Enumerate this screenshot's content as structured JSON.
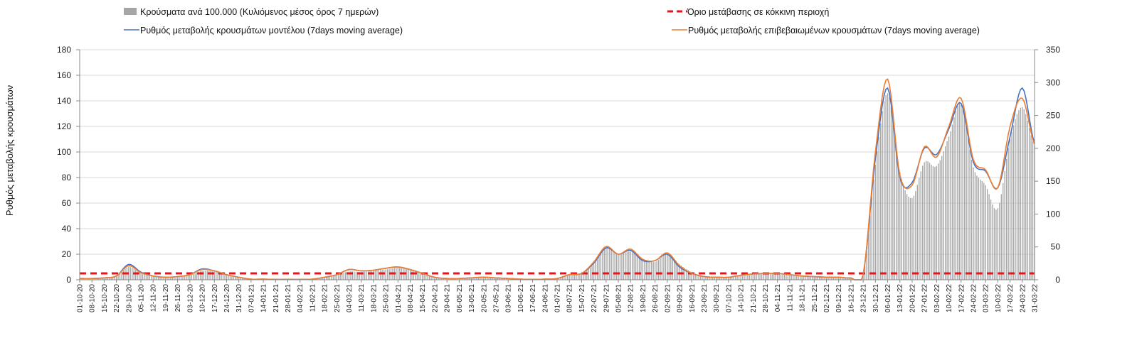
{
  "chart_data": {
    "type": "bar+line",
    "ylabel": "Ρυθμός μεταβολής κρουσμάτων",
    "y_left": {
      "min": 0,
      "max": 180,
      "step": 20
    },
    "y_right": {
      "min": 0,
      "max": 350,
      "step": 50
    },
    "legend": {
      "bars": "Κρούσματα ανά 100.000 (Κυλιόμενος μέσος όρος 7 ημερών)",
      "threshold": "Όριο μετάβασης σε κόκκινη περιοχή",
      "model": "Ρυθμός μεταβολής κρουσμάτων μοντέλου (7days moving average)",
      "confirmed": "Ρυθμός μεταβολής επιβεβαιωμένων κρουσμάτων (7days moving average)"
    },
    "colors": {
      "bars": "#a6a6a6",
      "threshold": "#e8141c",
      "model": "#4472c4",
      "confirmed": "#ed7d31"
    },
    "x_labels": [
      "01-10-20",
      "08-10-20",
      "15-10-20",
      "22-10-20",
      "29-10-20",
      "05-11-20",
      "12-11-20",
      "19-11-20",
      "26-11-20",
      "03-12-20",
      "10-12-20",
      "17-12-20",
      "24-12-20",
      "31-12-20",
      "07-01-21",
      "14-01-21",
      "21-01-21",
      "28-01-21",
      "04-02-21",
      "11-02-21",
      "18-02-21",
      "25-02-21",
      "04-03-21",
      "11-03-21",
      "18-03-21",
      "25-03-21",
      "01-04-21",
      "08-04-21",
      "15-04-21",
      "22-04-21",
      "29-04-21",
      "06-05-21",
      "13-05-21",
      "20-05-21",
      "27-05-21",
      "03-06-21",
      "10-06-21",
      "17-06-21",
      "24-06-21",
      "01-07-21",
      "08-07-21",
      "15-07-21",
      "22-07-21",
      "29-07-21",
      "05-08-21",
      "12-08-21",
      "19-08-21",
      "26-08-21",
      "02-09-21",
      "09-09-21",
      "16-09-21",
      "23-09-21",
      "30-09-21",
      "07-10-21",
      "14-10-21",
      "21-10-21",
      "28-10-21",
      "04-11-21",
      "11-11-21",
      "18-11-21",
      "25-11-21",
      "02-12-21",
      "09-12-21",
      "16-12-21",
      "23-12-21",
      "30-12-21",
      "06-01-22",
      "13-01-22",
      "20-01-22",
      "27-01-22",
      "03-02-22",
      "10-02-22",
      "17-02-22",
      "24-02-22",
      "03-03-22",
      "10-03-22",
      "17-03-22",
      "24-03-22",
      "31-03-22"
    ],
    "threshold_value": 5,
    "bars_weekly": [
      1,
      1,
      1.5,
      3,
      10,
      5,
      2.5,
      1.5,
      2,
      3.5,
      7,
      6.5,
      3.5,
      1.5,
      0.5,
      0.5,
      0.3,
      0.3,
      0.3,
      0.5,
      2,
      4,
      6.5,
      6,
      7,
      8,
      9.5,
      8,
      5,
      2,
      1,
      1,
      1.5,
      1.5,
      1.5,
      1,
      0.5,
      0.3,
      0.5,
      1,
      4,
      5,
      12,
      25,
      20,
      22,
      16,
      14,
      20,
      12,
      6,
      3,
      2,
      2,
      3,
      4,
      5,
      4.5,
      3.5,
      3,
      2.5,
      2,
      2,
      1.5,
      3,
      90,
      146,
      84,
      64,
      92,
      89,
      112,
      138,
      88,
      74,
      56,
      110,
      135,
      105
    ],
    "model_weekly": [
      1,
      1,
      1.5,
      3,
      12,
      6,
      3,
      2,
      2.5,
      4,
      8.5,
      7,
      4,
      2,
      0.5,
      0.5,
      0.3,
      0.3,
      0.3,
      0.5,
      2,
      4,
      8,
      7,
      7.5,
      9,
      10,
      8,
      5,
      2,
      1,
      1,
      1.5,
      2,
      1.5,
      1,
      0.5,
      0.3,
      0.5,
      1,
      4,
      5,
      13,
      25,
      20,
      23,
      15,
      15,
      20,
      10,
      5,
      2.5,
      2,
      2,
      3.5,
      4.5,
      5,
      5,
      4,
      3,
      2.5,
      2,
      2,
      1.5,
      4,
      95,
      150,
      80,
      76,
      103,
      98,
      118,
      138,
      92,
      85,
      72,
      112,
      150,
      107
    ],
    "confirmed_weekly": [
      1,
      1,
      1.5,
      3,
      11,
      5.5,
      3,
      2,
      2.5,
      4,
      8,
      7,
      4,
      2,
      0.5,
      0.5,
      0.3,
      0.3,
      0.3,
      0.5,
      2,
      4,
      8,
      7,
      7.5,
      9,
      10,
      8,
      5,
      2,
      1,
      1,
      1.5,
      2,
      1.5,
      1,
      0.5,
      0.3,
      0.5,
      1,
      4,
      5,
      14,
      26,
      20,
      24,
      16,
      15,
      21,
      11,
      5,
      2.5,
      2,
      2,
      3.5,
      4.5,
      5,
      5,
      4,
      3,
      2.5,
      2,
      2,
      1.5,
      4,
      100,
      157,
      82,
      74,
      104,
      96,
      120,
      142,
      94,
      86,
      72,
      120,
      142,
      106
    ]
  }
}
